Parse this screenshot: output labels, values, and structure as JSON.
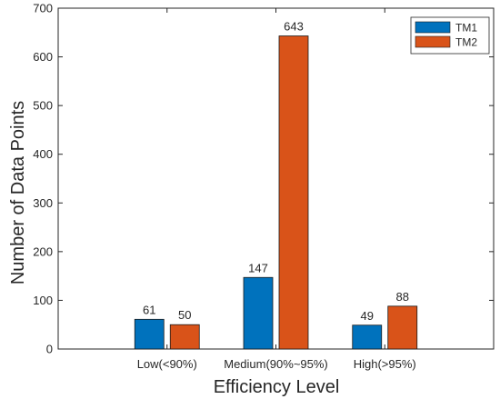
{
  "chart_data": {
    "type": "bar",
    "categories": [
      "Low(<90%)",
      "Medium(90%~95%)",
      "High(>95%)"
    ],
    "series": [
      {
        "name": "TM1",
        "values": [
          61,
          147,
          49
        ],
        "color": "#0072BD"
      },
      {
        "name": "TM2",
        "values": [
          50,
          643,
          88
        ],
        "color": "#D95319"
      }
    ],
    "xlabel": "Efficiency Level",
    "ylabel": "Number of Data Points",
    "ylim": [
      0,
      700
    ],
    "yticks": [
      0,
      100,
      200,
      300,
      400,
      500,
      600,
      700
    ],
    "grid": false,
    "legend_position": "top-right",
    "data_labels": true
  }
}
